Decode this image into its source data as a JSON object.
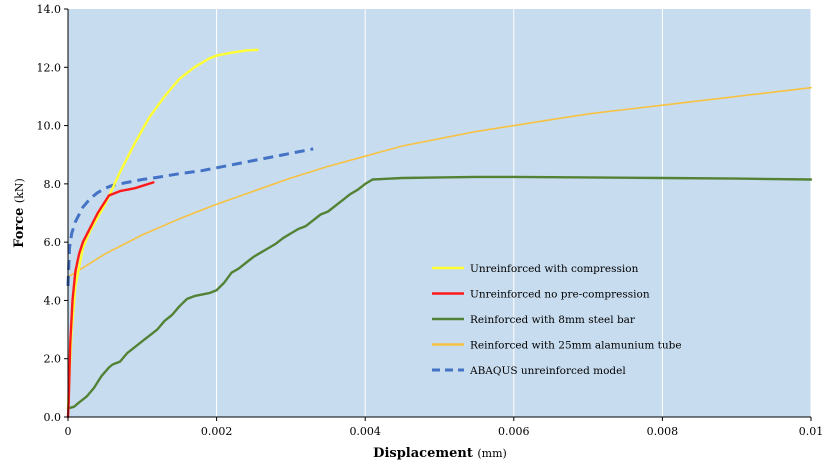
{
  "chart_data": {
    "type": "line",
    "title": "",
    "xlabel": "Displacement",
    "xlabel_unit": "(mm)",
    "ylabel": "Force",
    "ylabel_unit": "(kN)",
    "xlim": [
      0,
      0.01
    ],
    "ylim": [
      0,
      14.0
    ],
    "x_ticks": [
      0,
      0.002,
      0.004,
      0.006,
      0.008,
      0.01
    ],
    "x_tick_labels": [
      "0",
      "0.002",
      "0.004",
      "0.006",
      "0.008",
      "0.01"
    ],
    "y_ticks": [
      0,
      2,
      4,
      6,
      8,
      10,
      12,
      14
    ],
    "y_tick_labels": [
      "0.0",
      "2.0",
      "4.0",
      "6.0",
      "8.0",
      "10.0",
      "12.0",
      "14.0"
    ],
    "plot_background": "#c7dcef",
    "grid": {
      "vertical": true,
      "horizontal": false,
      "color": "#ffffff"
    },
    "legend_position": "bottom-right",
    "series": [
      {
        "name": "Unreinforced with compression",
        "color": "#ffff33",
        "dash": "solid",
        "x": [
          0,
          2e-05,
          5e-05,
          0.0001,
          0.0002,
          0.0003,
          0.0005,
          0.0007,
          0.0009,
          0.0011,
          0.0013,
          0.0015,
          0.0017,
          0.0019,
          0.002,
          0.0022,
          0.0024,
          0.00255
        ],
        "y": [
          0.3,
          1.5,
          3.0,
          4.5,
          5.8,
          6.4,
          7.3,
          8.4,
          9.4,
          10.3,
          11.0,
          11.6,
          12.0,
          12.3,
          12.4,
          12.5,
          12.58,
          12.6
        ]
      },
      {
        "name": "Unreinforced no pre-compression",
        "color": "#ff1a1a",
        "dash": "solid",
        "x": [
          0,
          1e-05,
          3e-05,
          6e-05,
          0.0001,
          0.00015,
          0.0002,
          0.0003,
          0.0004,
          0.00055,
          0.0007,
          0.0009,
          0.00115
        ],
        "y": [
          0.0,
          0.5,
          2.5,
          4.0,
          5.0,
          5.6,
          6.0,
          6.5,
          7.0,
          7.6,
          7.75,
          7.85,
          8.05
        ]
      },
      {
        "name": "Reinforced with 8mm steel bar",
        "color": "#548235",
        "dash": "solid",
        "x": [
          0,
          8e-05,
          0.00015,
          0.00025,
          0.00035,
          0.0004,
          0.00045,
          0.00055,
          0.0006,
          0.0007,
          0.0008,
          0.0009,
          0.001,
          0.0011,
          0.0012,
          0.0013,
          0.0014,
          0.0015,
          0.0016,
          0.0017,
          0.0019,
          0.002,
          0.0021,
          0.0022,
          0.0023,
          0.0024,
          0.0025,
          0.0026,
          0.0027,
          0.0028,
          0.0029,
          0.003,
          0.0031,
          0.0032,
          0.0033,
          0.0034,
          0.0035,
          0.0036,
          0.0037,
          0.0038,
          0.0039,
          0.004,
          0.0041,
          0.0045,
          0.005,
          0.0055,
          0.006,
          0.007,
          0.008,
          0.009,
          0.01
        ],
        "y": [
          0.3,
          0.35,
          0.5,
          0.7,
          1.0,
          1.2,
          1.4,
          1.7,
          1.8,
          1.9,
          2.2,
          2.4,
          2.6,
          2.8,
          3.0,
          3.3,
          3.5,
          3.8,
          4.05,
          4.15,
          4.25,
          4.35,
          4.6,
          4.95,
          5.1,
          5.3,
          5.5,
          5.65,
          5.8,
          5.95,
          6.15,
          6.3,
          6.45,
          6.55,
          6.75,
          6.95,
          7.05,
          7.25,
          7.45,
          7.65,
          7.8,
          8.0,
          8.15,
          8.2,
          8.22,
          8.24,
          8.24,
          8.22,
          8.2,
          8.18,
          8.15
        ]
      },
      {
        "name": "Reinforced with 25mm alamunium tube",
        "color": "#f7c242",
        "dash": "solid",
        "x": [
          0,
          0.0005,
          0.001,
          0.0015,
          0.002,
          0.0025,
          0.003,
          0.0035,
          0.004,
          0.0045,
          0.005,
          0.0055,
          0.006,
          0.0065,
          0.007,
          0.0075,
          0.008,
          0.0085,
          0.009,
          0.0095,
          0.01
        ],
        "y": [
          4.8,
          5.6,
          6.25,
          6.8,
          7.3,
          7.75,
          8.2,
          8.6,
          8.95,
          9.3,
          9.55,
          9.8,
          10.0,
          10.2,
          10.4,
          10.55,
          10.7,
          10.85,
          11.0,
          11.15,
          11.3
        ]
      },
      {
        "name": "ABAQUS unreinforced model",
        "color": "#4472c4",
        "dash": "dashed",
        "x": [
          0,
          2e-05,
          5e-05,
          0.0001,
          0.0002,
          0.0003,
          0.0004,
          0.0005,
          0.0006,
          0.0008,
          0.001,
          0.0012,
          0.0015,
          0.0018,
          0.002,
          0.0022,
          0.0025,
          0.0028,
          0.003,
          0.0033
        ],
        "y": [
          4.5,
          5.8,
          6.3,
          6.7,
          7.2,
          7.5,
          7.7,
          7.85,
          7.95,
          8.05,
          8.15,
          8.22,
          8.35,
          8.45,
          8.55,
          8.65,
          8.8,
          8.95,
          9.05,
          9.2
        ]
      }
    ]
  }
}
